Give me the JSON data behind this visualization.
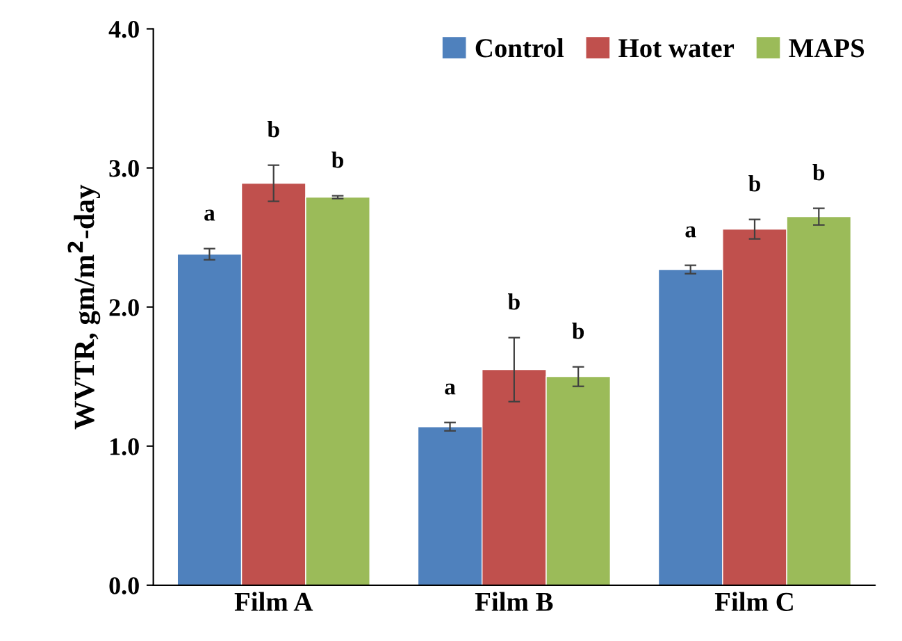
{
  "chart_data": {
    "type": "bar",
    "ylabel": "WVTR, gm/m$^{2}$-day",
    "categories": [
      "Film A",
      "Film B",
      "Film C"
    ],
    "series": [
      {
        "name": "Control",
        "color": "#4f81bd",
        "values": [
          2.38,
          1.14,
          2.27
        ],
        "errors": [
          0.04,
          0.03,
          0.03
        ]
      },
      {
        "name": "Hot water",
        "color": "#c0504d",
        "values": [
          2.89,
          1.55,
          2.56
        ],
        "errors": [
          0.13,
          0.23,
          0.07
        ]
      },
      {
        "name": "MAPS",
        "color": "#9bbb59",
        "values": [
          2.79,
          1.5,
          2.65
        ],
        "errors": [
          0.01,
          0.07,
          0.06
        ]
      }
    ],
    "ylim": [
      0,
      4
    ],
    "yticks": [
      {
        "value": 0,
        "label": "0.0"
      },
      {
        "value": 1,
        "label": "1.0"
      },
      {
        "value": 2,
        "label": "2.0"
      },
      {
        "value": 3,
        "label": "3.0"
      },
      {
        "value": 4,
        "label": "4.0"
      }
    ],
    "annotations": [
      "a",
      "b",
      "b",
      "a",
      "b",
      "b",
      "a",
      "b",
      "b"
    ],
    "legend": "top right",
    "grid": false
  }
}
